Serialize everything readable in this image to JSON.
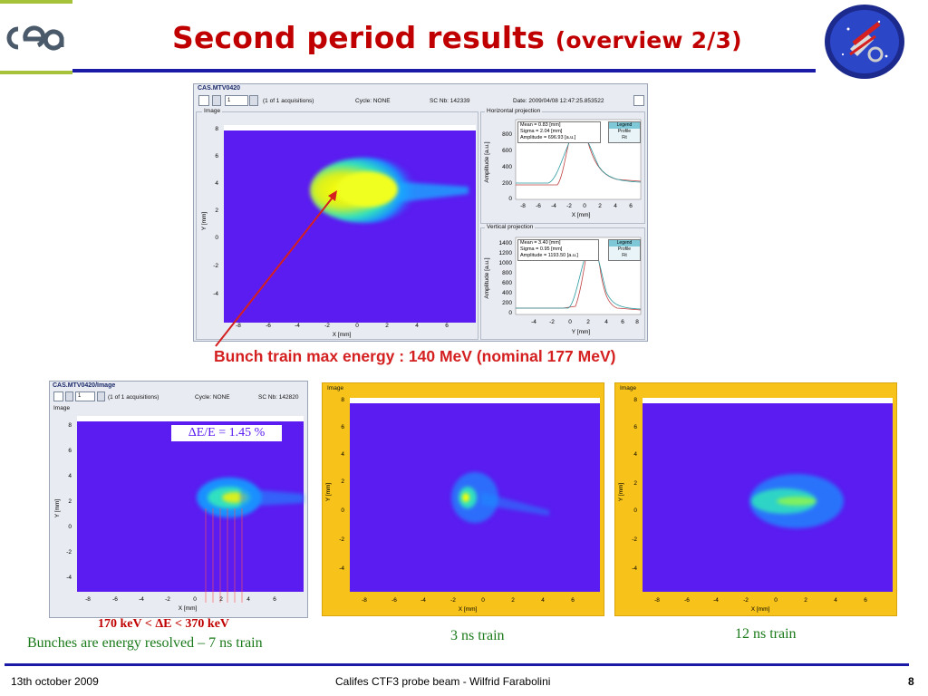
{
  "slide": {
    "title": "Second period results",
    "title_sub": "(overview 2/3)",
    "page_number": "8",
    "footer_date": "13th october 2009",
    "footer_center": "Califes CTF3 probe beam - Wilfrid Farabolini"
  },
  "logos": {
    "left": "cea",
    "right_icon": "ctf3-logo-icon"
  },
  "main_window": {
    "title": "CAS.MTV0420",
    "acq_value": "1",
    "acq_text": "(1 of 1 acquisitions)",
    "cycle": "Cycle: NONE",
    "sc_nb": "SC Nb: 142339",
    "date": "Date: 2009/04/08 12:47:25.853522",
    "image_label": "Image",
    "image_xlabel": "X [mm]",
    "image_ylabel": "Y [mm]",
    "image_xticks": [
      "-8",
      "-6",
      "-4",
      "-2",
      "0",
      "2",
      "4",
      "6"
    ],
    "image_yticks": [
      "8",
      "6",
      "4",
      "2",
      "0",
      "-2",
      "-4"
    ],
    "hproj": {
      "label": "Horizontal projection",
      "stats": [
        "Mean = 0.83 [mm]",
        "Sigma = 2.04 [mm]",
        "Amplitude = 696.93 [a.u.]"
      ],
      "legend": [
        "Legend",
        "Profile",
        "Fit"
      ],
      "ylabel": "Amplitude [a.u.]",
      "xlabel": "X [mm]",
      "yticks": [
        "800",
        "600",
        "400",
        "200",
        "0"
      ],
      "xticks": [
        "-8",
        "-6",
        "-4",
        "-2",
        "0",
        "2",
        "4",
        "6"
      ]
    },
    "vproj": {
      "label": "Vertical projection",
      "stats": [
        "Mean = 3.40 [mm]",
        "Sigma = 0.95 [mm]",
        "Amplitude = 1193.50 [a.u.]"
      ],
      "legend": [
        "Legend",
        "Profile",
        "Fit"
      ],
      "ylabel": "Amplitude [a.u.]",
      "xlabel": "Y [mm]",
      "yticks": [
        "1400",
        "1200",
        "1000",
        "800",
        "600",
        "400",
        "200",
        "0"
      ],
      "xticks": [
        "-4",
        "-2",
        "0",
        "2",
        "4",
        "6",
        "8"
      ]
    }
  },
  "caption_main": "Bunch train max energy : 140 MeV (nominal 177 MeV)",
  "small_window": {
    "title": "CAS.MTV0420/Image",
    "acq_value": "1",
    "acq_text": "(1 of 1 acquisitions)",
    "cycle": "Cycle: NONE",
    "sc_nb": "SC Nb: 142820",
    "image_label": "Image",
    "annotation": "ΔE/E = 1.45 %",
    "xlabel": "X [mm]",
    "ylabel": "Y [mm]",
    "xticks": [
      "-8",
      "-6",
      "-4",
      "-2",
      "0",
      "2",
      "4",
      "6"
    ],
    "yticks": [
      "8",
      "6",
      "4",
      "2",
      "0",
      "-2",
      "-4"
    ]
  },
  "panel_3ns": {
    "image_label": "Image",
    "xlabel": "X [mm]",
    "ylabel": "Y [mm]",
    "xticks": [
      "-8",
      "-6",
      "-4",
      "-2",
      "0",
      "2",
      "4",
      "6"
    ],
    "yticks": [
      "8",
      "6",
      "4",
      "2",
      "0",
      "-2",
      "-4"
    ]
  },
  "panel_12ns": {
    "image_label": "Image",
    "xlabel": "X [mm]",
    "ylabel": "Y [mm]",
    "xticks": [
      "-8",
      "-6",
      "-4",
      "-2",
      "0",
      "2",
      "4",
      "6"
    ],
    "yticks": [
      "8",
      "6",
      "4",
      "2",
      "0",
      "-2",
      "-4"
    ]
  },
  "captions": {
    "energy_range": "170 keV  < ΔE < 370 keV",
    "bunches": "Bunches are energy resolved – 7 ns train",
    "train_3ns": "3 ns train",
    "train_12ns": "12 ns train"
  },
  "colors": {
    "title_red": "#c00000",
    "rule_blue": "#1a1aa6",
    "beam_bg": "#5a1cf0",
    "panel_yellow": "#f7c21a",
    "caption_green": "#1a7a1a"
  }
}
